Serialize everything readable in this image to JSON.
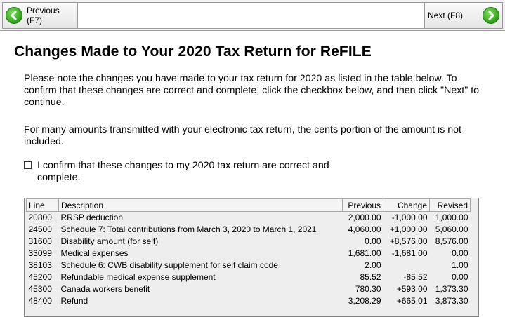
{
  "nav": {
    "previous_label": "Previous (F7)",
    "next_label": "Next (F8)",
    "previous_icon": "left-arrow-icon",
    "next_icon": "right-arrow-icon",
    "icon_color": "#2ea21a"
  },
  "page": {
    "title": "Changes Made to Your 2020 Tax Return for ReFILE",
    "paragraph1": "Please note the changes you have made to your tax return for 2020 as listed in the table below. To confirm that these changes are correct and complete, click the checkbox below, and then click \"Next\" to continue.",
    "paragraph2": "For many amounts transmitted with your electronic tax return, the cents portion of the amount is not included.",
    "confirm_label": "I confirm that these changes to my 2020 tax return are correct and complete."
  },
  "table": {
    "columns": [
      "Line",
      "Description",
      "Previous",
      "Change",
      "Revised"
    ],
    "rows": [
      [
        "20800",
        "RRSP deduction",
        "2,000.00",
        "-1,000.00",
        "1,000.00"
      ],
      [
        "24500",
        "Schedule 7: Total contributions from March 3, 2020 to March 1, 2021",
        "4,060.00",
        "+1,000.00",
        "5,060.00"
      ],
      [
        "31600",
        "Disability amount (for self)",
        "0.00",
        "+8,576.00",
        "8,576.00"
      ],
      [
        "33099",
        "Medical expenses",
        "1,681.00",
        "-1,681.00",
        "0.00"
      ],
      [
        "38103",
        "Schedule 6: CWB disability supplement for self claim code",
        "2.00",
        "",
        "1.00"
      ],
      [
        "45200",
        "Refundable medical expense supplement",
        "85.52",
        "-85.52",
        "0.00"
      ],
      [
        "45300",
        "Canada workers benefit",
        "780.30",
        "+593.00",
        "1,373.30"
      ],
      [
        "48400",
        "Refund",
        "3,208.29",
        "+665.01",
        "3,873.30"
      ]
    ]
  }
}
